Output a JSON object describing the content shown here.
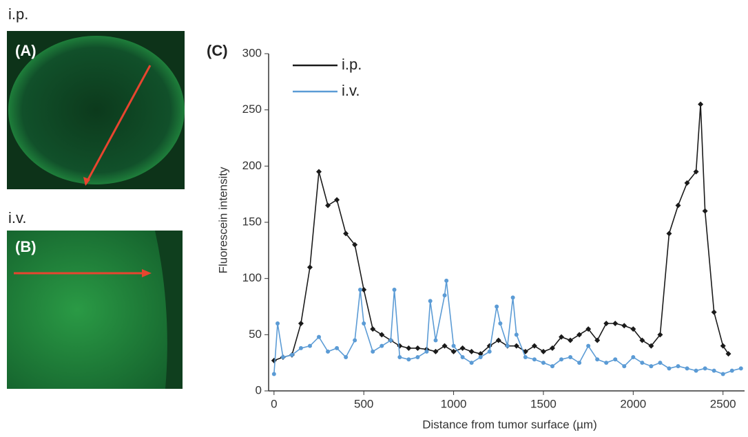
{
  "panels": [
    {
      "label": "i.p.",
      "tag": "(A)"
    },
    {
      "label": "i.v.",
      "tag": "(B)"
    }
  ],
  "chart_data": {
    "type": "line",
    "panel_tag": "(C)",
    "x_label": "Distance from tumor surface (µm)",
    "y_label": "Fluorescein intensity",
    "xlim": [
      -30,
      2620
    ],
    "ylim": [
      0,
      300
    ],
    "xticks": [
      0,
      500,
      1000,
      1500,
      2000,
      2500
    ],
    "yticks": [
      0,
      50,
      100,
      150,
      200,
      250,
      300
    ],
    "series": [
      {
        "name": "i.p.",
        "color": "#1a1a1a",
        "marker": "diamond",
        "x": [
          0,
          50,
          100,
          150,
          200,
          250,
          300,
          350,
          400,
          450,
          500,
          550,
          600,
          650,
          700,
          750,
          800,
          850,
          900,
          950,
          1000,
          1050,
          1100,
          1150,
          1200,
          1250,
          1300,
          1350,
          1400,
          1450,
          1500,
          1550,
          1600,
          1650,
          1700,
          1750,
          1800,
          1850,
          1900,
          1950,
          2000,
          2050,
          2100,
          2150,
          2200,
          2250,
          2300,
          2350,
          2375,
          2400,
          2450,
          2500,
          2530
        ],
        "values": [
          27,
          30,
          32,
          60,
          110,
          195,
          165,
          170,
          140,
          130,
          90,
          55,
          50,
          45,
          40,
          38,
          38,
          37,
          35,
          40,
          35,
          38,
          35,
          33,
          40,
          45,
          40,
          40,
          35,
          40,
          35,
          38,
          48,
          45,
          50,
          55,
          45,
          60,
          60,
          58,
          55,
          45,
          40,
          50,
          140,
          165,
          185,
          195,
          255,
          160,
          70,
          40,
          33
        ]
      },
      {
        "name": "i.v.",
        "color": "#5b9bd5",
        "marker": "circle",
        "x": [
          0,
          20,
          50,
          100,
          150,
          200,
          250,
          300,
          350,
          400,
          450,
          480,
          500,
          550,
          600,
          650,
          670,
          700,
          750,
          800,
          850,
          870,
          900,
          950,
          960,
          1000,
          1050,
          1100,
          1150,
          1200,
          1240,
          1260,
          1300,
          1330,
          1350,
          1400,
          1450,
          1500,
          1550,
          1600,
          1650,
          1700,
          1750,
          1800,
          1850,
          1900,
          1950,
          2000,
          2050,
          2100,
          2150,
          2200,
          2250,
          2300,
          2350,
          2400,
          2450,
          2500,
          2550,
          2600
        ],
        "values": [
          15,
          60,
          30,
          32,
          38,
          40,
          48,
          35,
          38,
          30,
          45,
          90,
          60,
          35,
          40,
          45,
          90,
          30,
          28,
          30,
          35,
          80,
          45,
          85,
          98,
          40,
          30,
          25,
          30,
          35,
          75,
          60,
          40,
          83,
          50,
          30,
          28,
          25,
          22,
          28,
          30,
          25,
          40,
          28,
          25,
          28,
          22,
          30,
          25,
          22,
          25,
          20,
          22,
          20,
          18,
          20,
          18,
          15,
          18,
          20
        ]
      }
    ]
  }
}
